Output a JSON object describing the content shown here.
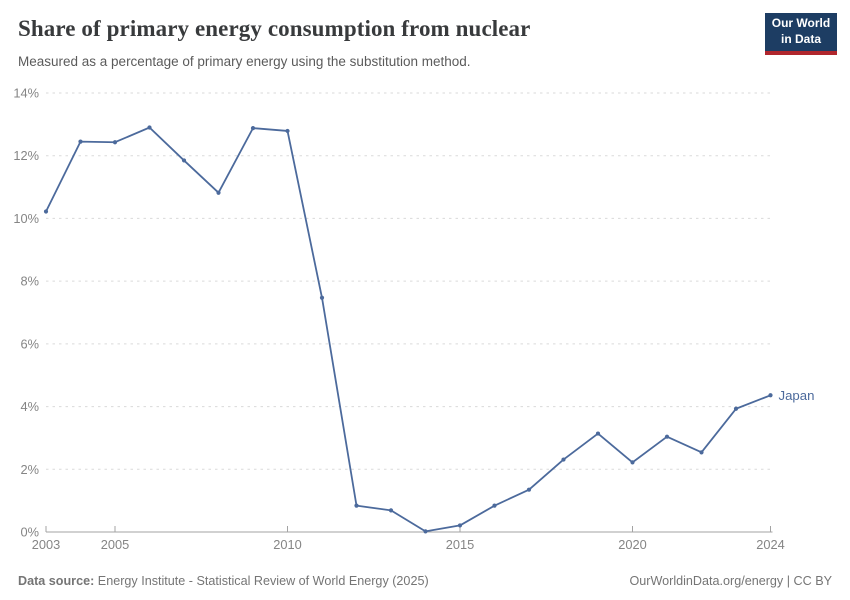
{
  "header": {
    "title": "Share of primary energy consumption from nuclear",
    "subtitle": "Measured as a percentage of primary energy using the substitution method.",
    "logo": {
      "line1": "Our World",
      "line2": "in Data"
    }
  },
  "chart_data": {
    "type": "line",
    "title": "Share of primary energy consumption from nuclear",
    "xlabel": "",
    "ylabel": "",
    "grid": "horizontal-dashed",
    "legend_position": "end-of-line",
    "xlim": [
      2003,
      2024
    ],
    "ylim": [
      0,
      14
    ],
    "xticks": [
      2003,
      2005,
      2010,
      2015,
      2020,
      2024
    ],
    "yticks": [
      0,
      2,
      4,
      6,
      8,
      10,
      12,
      14
    ],
    "ytick_suffix": "%",
    "x": [
      2003,
      2004,
      2005,
      2006,
      2007,
      2008,
      2009,
      2010,
      2011,
      2012,
      2013,
      2014,
      2015,
      2016,
      2017,
      2018,
      2019,
      2020,
      2021,
      2022,
      2023,
      2024
    ],
    "series": [
      {
        "name": "Japan",
        "color": "#4C6A9C",
        "values": [
          10.22,
          12.45,
          12.43,
          12.9,
          11.85,
          10.82,
          12.88,
          12.79,
          7.47,
          0.84,
          0.69,
          0.02,
          0.21,
          0.84,
          1.35,
          2.31,
          3.14,
          2.22,
          3.04,
          2.54,
          3.93,
          4.36
        ]
      }
    ]
  },
  "footer": {
    "source_label": "Data source:",
    "source_text": " Energy Institute - Statistical Review of World Energy (2025)",
    "credit": "OurWorldinData.org/energy | CC BY"
  },
  "colors": {
    "line": "#4C6A9C",
    "gridline": "#dadada",
    "axis": "#a3a3a3",
    "tick_label": "#858585",
    "logo_bg": "#1d3d63",
    "logo_accent": "#b0262d"
  }
}
